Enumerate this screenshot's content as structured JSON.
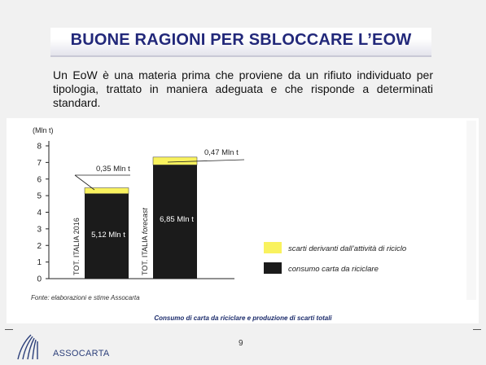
{
  "slide": {
    "title": "BUONE RAGIONI PER SBLOCCARE L’EOW",
    "intro": "Un EoW è una materia prima che proviene da un rifiuto individuato per tipologia, trattato in maniera adeguata e che risponde a determinati standard.",
    "page_number": "9",
    "brand": "ASSOCARTA"
  },
  "chart_data": {
    "type": "bar",
    "ylabel": "(Mln t)",
    "ylim": [
      0,
      8
    ],
    "yticks": [
      "0",
      "1",
      "2",
      "3",
      "4",
      "5",
      "6",
      "7",
      "8"
    ],
    "categories": [
      "TOT. ITALIA 2016",
      "TOT. ITALIA forecast"
    ],
    "category_labels": [
      {
        "main": "TOT. ITALIA 2016",
        "suffix": ""
      },
      {
        "main": "TOT. ITALIA ",
        "suffix": "forecast"
      }
    ],
    "series": [
      {
        "name": "consumo carta da riciclare",
        "color": "#1b1b1b",
        "values": [
          5.12,
          6.85
        ]
      },
      {
        "name": "scarti derivanti dall’attività di riciclo",
        "color": "#f9f25e",
        "values": [
          0.35,
          0.47
        ]
      }
    ],
    "bar_labels": [
      "5,12 Mln t",
      "6,85 Mln t"
    ],
    "top_labels": [
      "0,35 Mln t",
      "0,47 Mln t"
    ],
    "stacked": true,
    "legend_position": "bottom-right",
    "source": "Fonte: elaborazioni e stime Assocarta",
    "caption": "Consumo di carta da riciclare e produzione di scarti totali"
  }
}
